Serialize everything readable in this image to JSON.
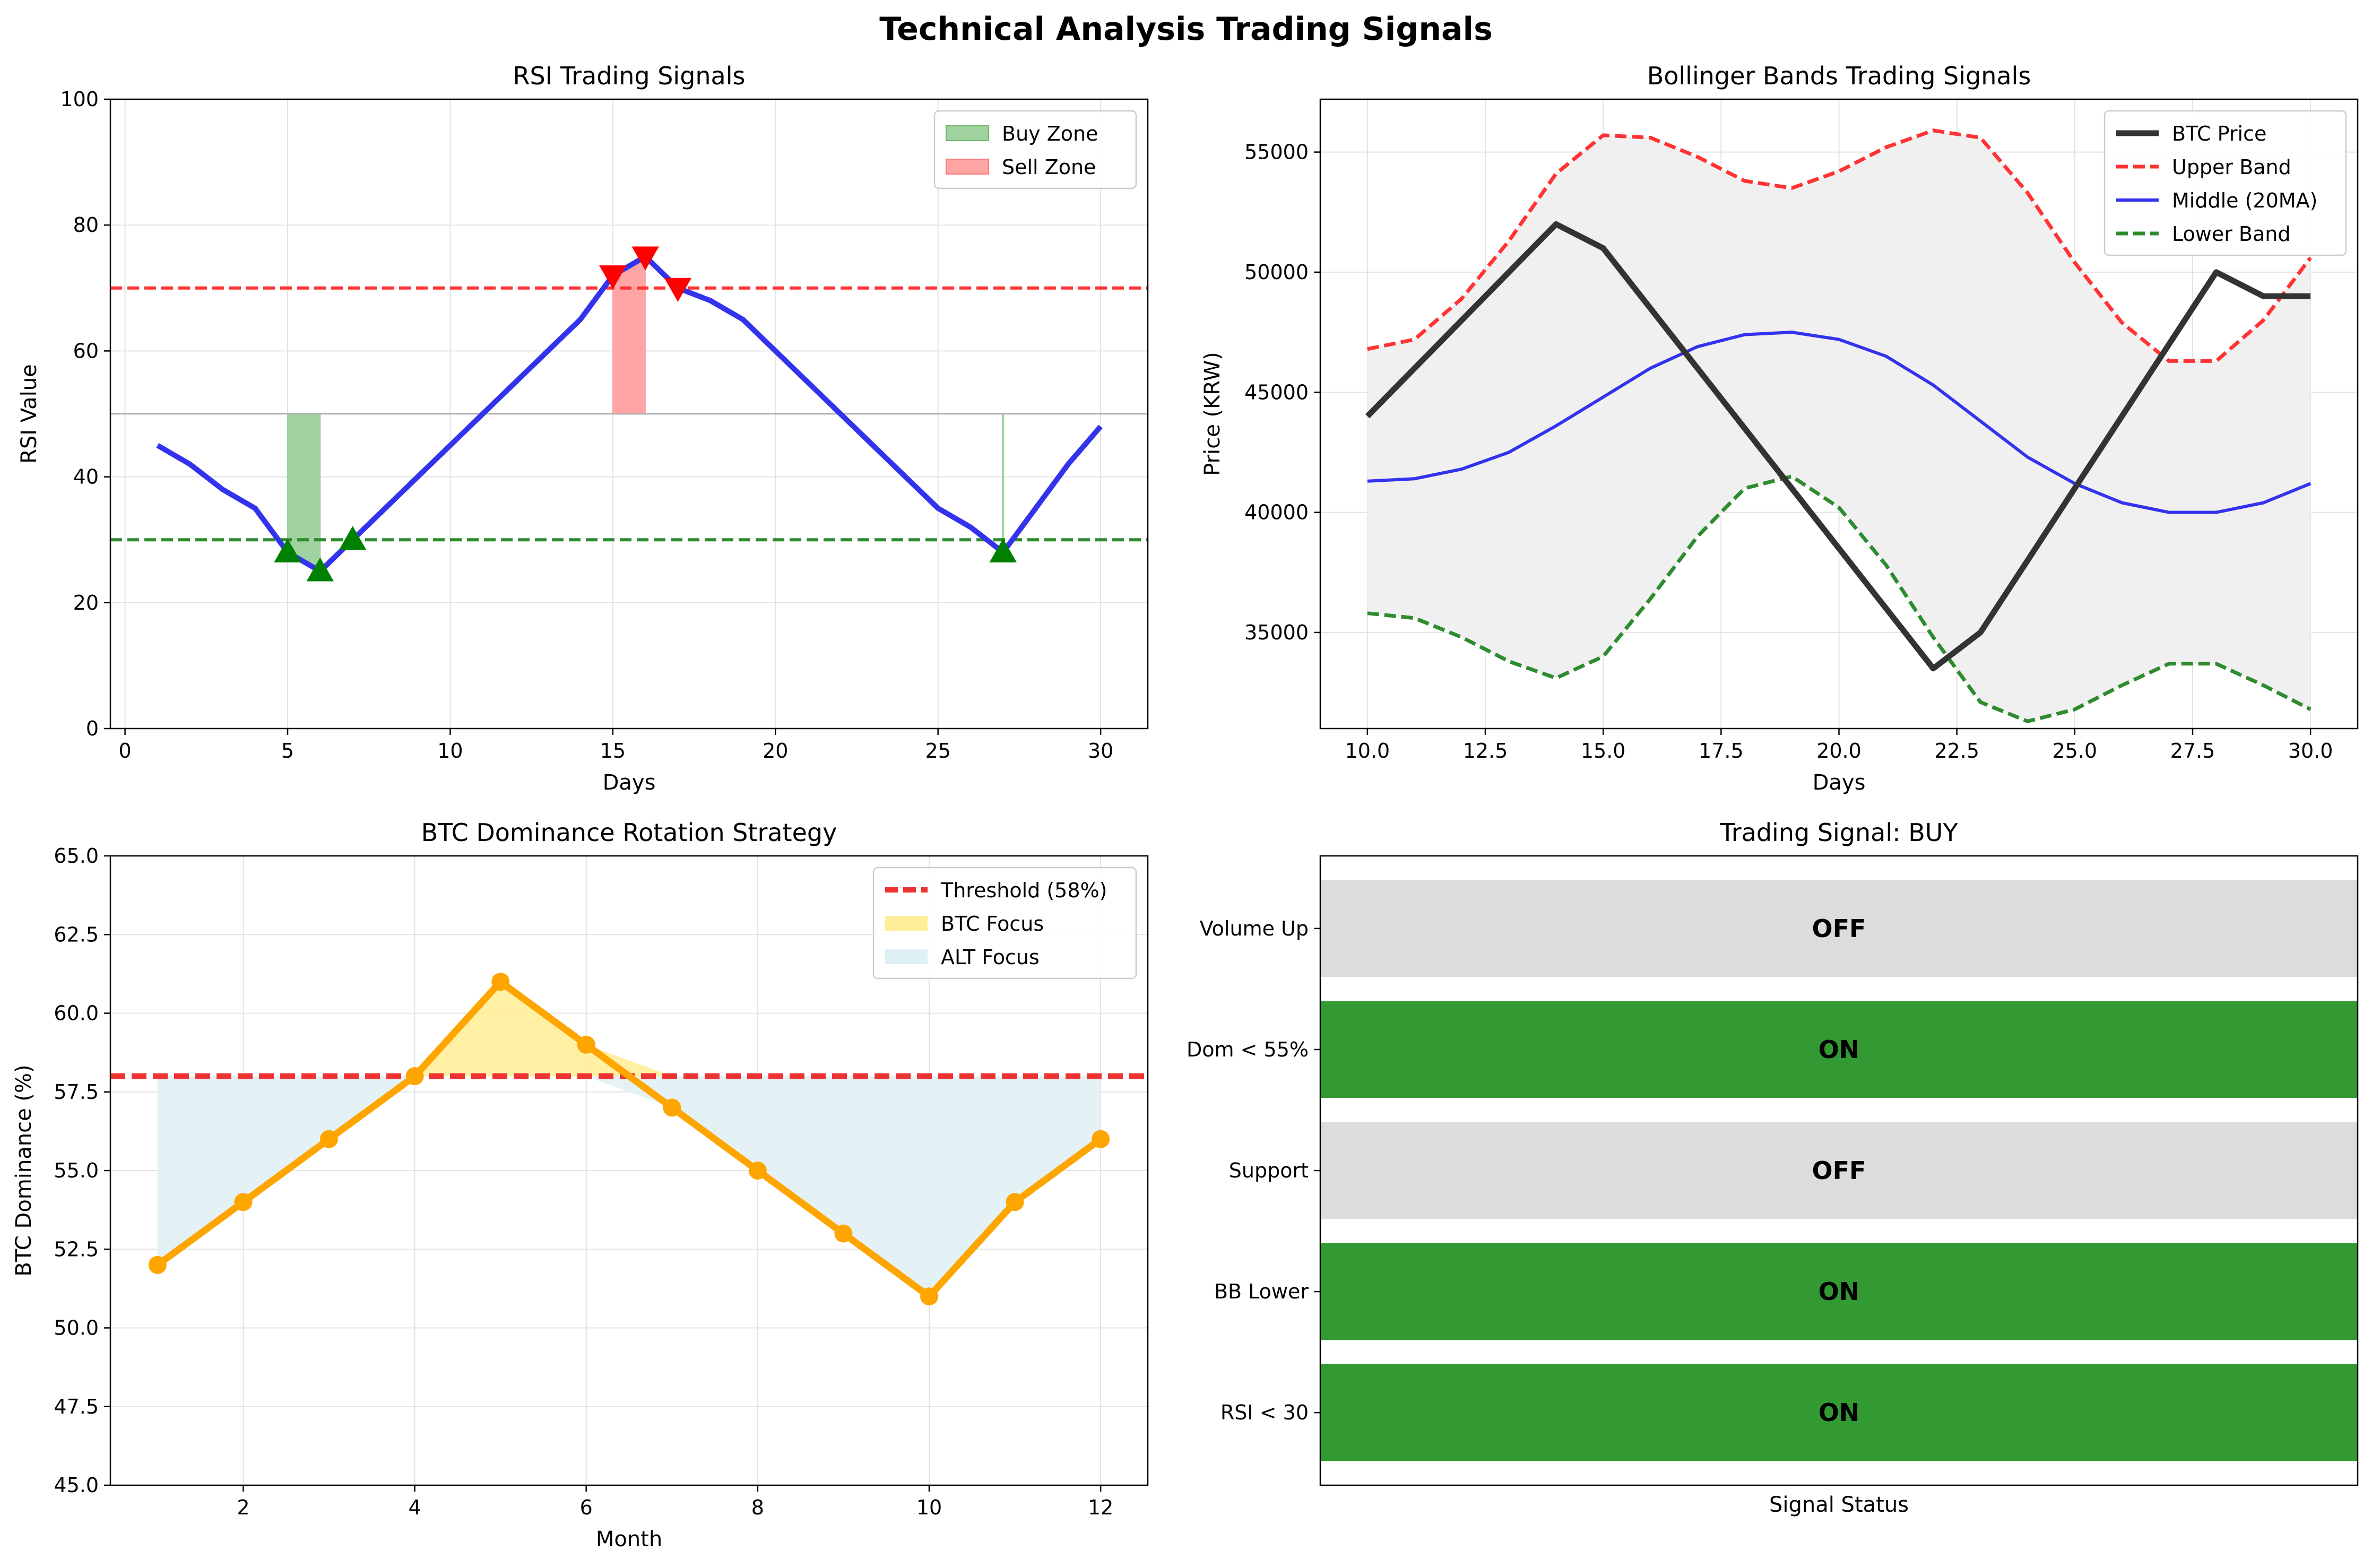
{
  "figure_title": "Technical Analysis Trading Signals",
  "colors": {
    "rsi_line": "#3333ee",
    "buy": "#2e8b2e",
    "sell": "#ff3333",
    "buy_zone_fill": "#9fd29f",
    "sell_zone_fill": "#ffa5a5",
    "price": "#333333",
    "upper_band": "#ff3333",
    "middle_band": "#3333ee",
    "lower_band": "#2e8b2e",
    "band_fill": "#f0f0f0",
    "dominance_line": "#ffa500",
    "btc_focus": "#ffee99",
    "alt_focus": "#dff0f5",
    "signal_on": "#339933",
    "signal_off": "#dcdcdc"
  },
  "chart_data": [
    {
      "id": "rsi",
      "type": "line",
      "title": "RSI Trading Signals",
      "xlabel": "Days",
      "ylabel": "RSI Value",
      "xlim": [
        -0.45,
        31.45
      ],
      "ylim": [
        0,
        100
      ],
      "xticks": [
        0,
        5,
        10,
        15,
        20,
        25,
        30
      ],
      "yticks": [
        0,
        20,
        40,
        60,
        80,
        100
      ],
      "grid": true,
      "legend_position": "top-right",
      "series": [
        {
          "name": "RSI",
          "x": [
            1,
            2,
            3,
            4,
            5,
            6,
            7,
            8,
            9,
            10,
            11,
            12,
            13,
            14,
            15,
            16,
            17,
            18,
            19,
            20,
            21,
            22,
            23,
            24,
            25,
            26,
            27,
            28,
            29,
            30
          ],
          "values": [
            45,
            42,
            38,
            35,
            28,
            25,
            30,
            35,
            40,
            45,
            50,
            55,
            60,
            65,
            72,
            75,
            70,
            68,
            65,
            60,
            55,
            50,
            45,
            40,
            35,
            32,
            28,
            35,
            42,
            48
          ]
        }
      ],
      "reference_lines": [
        {
          "y": 70,
          "style": "dashed",
          "color": "#ff3333"
        },
        {
          "y": 30,
          "style": "dashed",
          "color": "#2e8b2e"
        },
        {
          "y": 50,
          "style": "solid",
          "color": "#aaaaaa"
        }
      ],
      "zones": [
        {
          "name": "Buy Zone",
          "ranges": [
            [
              5,
              6
            ],
            [
              27,
              27
            ]
          ]
        },
        {
          "name": "Sell Zone",
          "ranges": [
            [
              15,
              16
            ]
          ]
        }
      ],
      "buy_signals": [
        [
          5,
          28
        ],
        [
          6,
          25
        ],
        [
          7,
          30
        ],
        [
          27,
          28
        ]
      ],
      "sell_signals": [
        [
          15,
          72
        ],
        [
          16,
          75
        ],
        [
          17,
          70
        ]
      ]
    },
    {
      "id": "bollinger",
      "type": "line",
      "title": "Bollinger Bands Trading Signals",
      "xlabel": "Days",
      "ylabel": "Price (KRW)",
      "xlim": [
        9,
        31
      ],
      "ylim": [
        31000,
        57200
      ],
      "xticks": [
        10,
        12.5,
        15,
        17.5,
        20,
        22.5,
        25,
        27.5,
        30
      ],
      "xtick_labels": [
        "10.0",
        "12.5",
        "15.0",
        "17.5",
        "20.0",
        "22.5",
        "25.0",
        "27.5",
        "30.0"
      ],
      "yticks": [
        35000,
        40000,
        45000,
        50000,
        55000
      ],
      "grid": true,
      "legend_position": "top-right",
      "x": [
        10,
        11,
        12,
        13,
        14,
        15,
        16,
        17,
        18,
        19,
        20,
        21,
        22,
        23,
        24,
        25,
        26,
        27,
        28,
        29,
        30
      ],
      "series": [
        {
          "name": "BTC Price",
          "values": [
            44000,
            46000,
            48000,
            50000,
            52000,
            51000,
            48500,
            46000,
            43500,
            41000,
            38500,
            36000,
            33500,
            35000,
            38000,
            41000,
            44000,
            47000,
            50000,
            49000,
            49000
          ]
        },
        {
          "name": "Upper Band",
          "values": [
            46800,
            47200,
            48900,
            51300,
            54100,
            55700,
            55600,
            54800,
            53800,
            53500,
            54200,
            55200,
            55900,
            55600,
            53300,
            50400,
            47900,
            46300,
            46300,
            48000,
            50600
          ]
        },
        {
          "name": "Middle (20MA)",
          "values": [
            41300,
            41400,
            41800,
            42500,
            43600,
            44800,
            46000,
            46900,
            47400,
            47500,
            47200,
            46500,
            45300,
            43800,
            42300,
            41200,
            40400,
            40000,
            40000,
            40400,
            41200
          ]
        },
        {
          "name": "Lower Band",
          "values": [
            35800,
            35600,
            34800,
            33800,
            33100,
            34000,
            36400,
            39000,
            41000,
            41500,
            40200,
            37800,
            34800,
            32100,
            31300,
            31800,
            32800,
            33700,
            33700,
            32800,
            31800
          ]
        }
      ]
    },
    {
      "id": "dominance",
      "type": "line",
      "title": "BTC Dominance Rotation Strategy",
      "xlabel": "Month",
      "ylabel": "BTC Dominance (%)",
      "xlim": [
        0.45,
        12.55
      ],
      "ylim": [
        45,
        65
      ],
      "xticks": [
        2,
        4,
        6,
        8,
        10,
        12
      ],
      "yticks": [
        45.0,
        47.5,
        50.0,
        52.5,
        55.0,
        57.5,
        60.0,
        62.5,
        65.0
      ],
      "ytick_labels": [
        "45.0",
        "47.5",
        "50.0",
        "52.5",
        "55.0",
        "57.5",
        "60.0",
        "62.5",
        "65.0"
      ],
      "grid": true,
      "legend_position": "top-right",
      "threshold": 58,
      "threshold_label": "Threshold (58%)",
      "fill_labels": [
        "BTC Focus",
        "ALT Focus"
      ],
      "series": [
        {
          "x": [
            1,
            2,
            3,
            4,
            5,
            6,
            7,
            8,
            9,
            10,
            11,
            12
          ],
          "values": [
            52,
            54,
            56,
            58,
            61,
            59,
            57,
            55,
            53,
            51,
            54,
            56
          ]
        }
      ]
    },
    {
      "id": "signals",
      "type": "bar",
      "title": "Trading Signal: BUY",
      "xlabel": "Signal Status",
      "categories": [
        "RSI < 30",
        "BB Lower",
        "Support",
        "Dom < 55%",
        "Volume Up"
      ],
      "values": [
        1,
        1,
        0,
        1,
        0
      ],
      "status_labels": [
        "ON",
        "ON",
        "OFF",
        "ON",
        "OFF"
      ]
    }
  ]
}
